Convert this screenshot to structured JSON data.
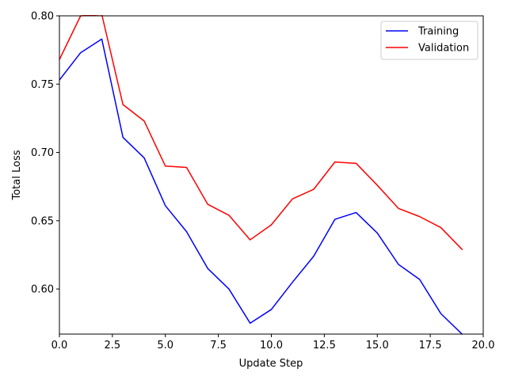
{
  "chart_data": {
    "type": "line",
    "xlabel": "Update Step",
    "ylabel": "Total Loss",
    "xlim": [
      0,
      20
    ],
    "ylim": [
      0.567,
      0.8
    ],
    "xticks": [
      "0.0",
      "2.5",
      "5.0",
      "7.5",
      "10.0",
      "12.5",
      "15.0",
      "17.5",
      "20.0"
    ],
    "yticks": [
      "0.60",
      "0.65",
      "0.70",
      "0.75",
      "0.80"
    ],
    "grid": false,
    "legend_position": "top-right",
    "x": [
      0,
      1,
      2,
      3,
      4,
      5,
      6,
      7,
      8,
      9,
      10,
      11,
      12,
      13,
      14,
      15,
      16,
      17,
      18,
      19
    ],
    "series": [
      {
        "name": "Training",
        "color": "#0000ff",
        "values": [
          0.753,
          0.773,
          0.783,
          0.711,
          0.696,
          0.661,
          0.642,
          0.615,
          0.6,
          0.575,
          0.585,
          0.605,
          0.624,
          0.651,
          0.656,
          0.641,
          0.618,
          0.607,
          0.582,
          0.567
        ]
      },
      {
        "name": "Validation",
        "color": "#ff0000",
        "values": [
          0.768,
          0.8,
          0.801,
          0.735,
          0.723,
          0.69,
          0.689,
          0.662,
          0.654,
          0.636,
          0.647,
          0.666,
          0.673,
          0.693,
          0.692,
          0.676,
          0.659,
          0.653,
          0.645,
          0.629
        ]
      }
    ]
  }
}
